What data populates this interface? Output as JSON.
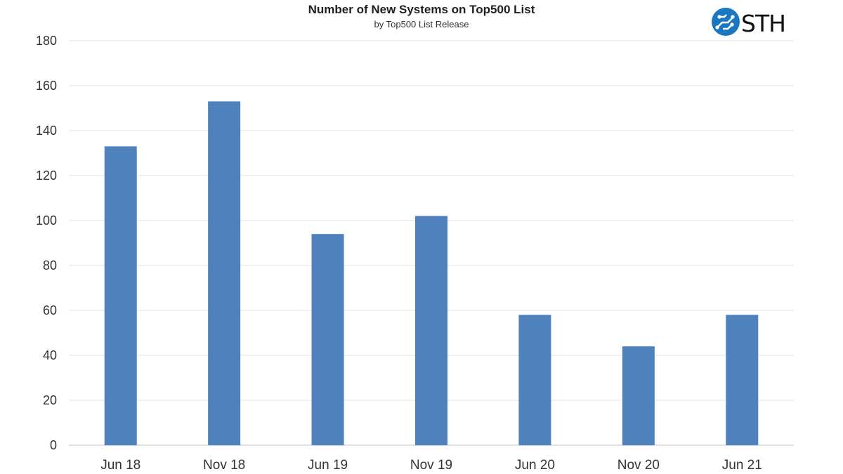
{
  "brand": {
    "name": "STH",
    "accent": "#1a78c2"
  },
  "chart_data": {
    "type": "bar",
    "title": "Number of New Systems on Top500 List",
    "subtitle": "by Top500 List Release",
    "xlabel": "",
    "ylabel": "",
    "categories": [
      "Jun 18",
      "Nov 18",
      "Jun 19",
      "Nov 19",
      "Jun 20",
      "Nov 20",
      "Jun 21"
    ],
    "values": [
      133,
      153,
      94,
      102,
      58,
      44,
      58
    ],
    "ylim": [
      0,
      180
    ],
    "yticks": [
      0,
      20,
      40,
      60,
      80,
      100,
      120,
      140,
      160,
      180
    ],
    "grid": true,
    "legend": "none",
    "bar_color": "#4f81bd"
  }
}
